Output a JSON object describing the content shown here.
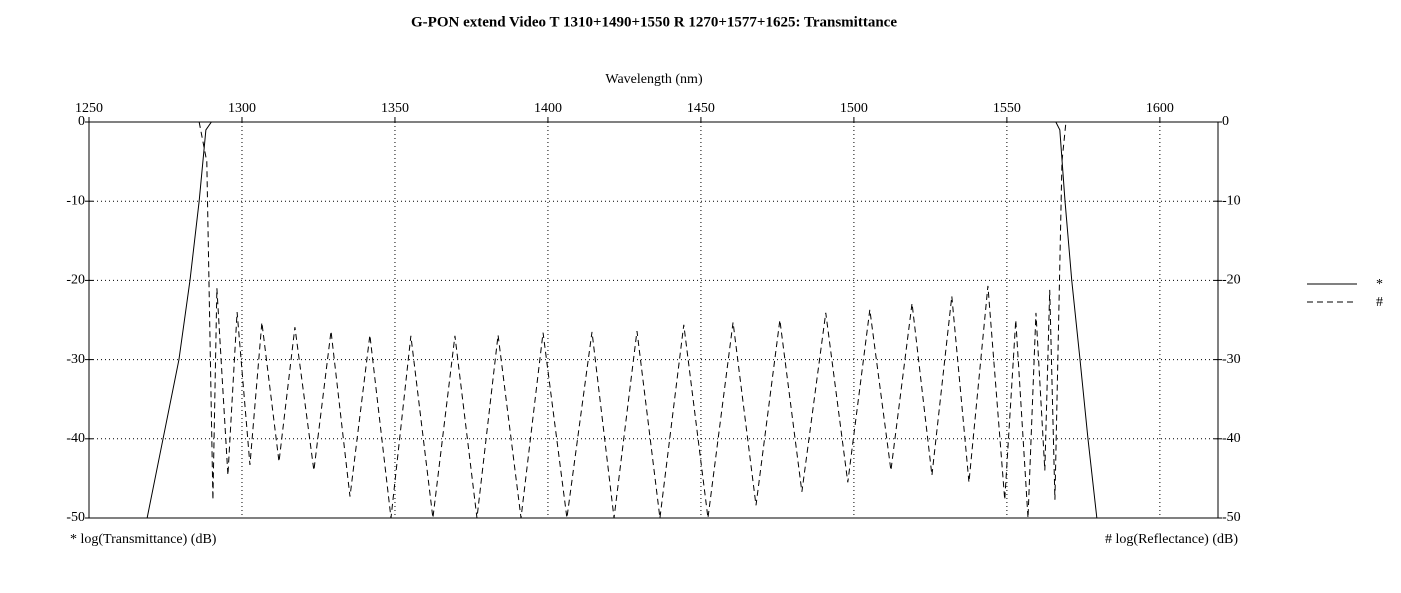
{
  "chart_data": {
    "type": "line",
    "title": "G-PON extend Video T 1310+1490+1550 R 1270+1577+1625: Transmittance",
    "x_label": "Wavelength (nm)",
    "y_label": "* log(Transmittance) (dB)",
    "y2_label": "# log(Reflectance) (dB)",
    "xlim": [
      1250,
      1619
    ],
    "xticks": [
      1250,
      1300,
      1350,
      1400,
      1450,
      1500,
      1550,
      1600
    ],
    "ylim": [
      -50,
      0
    ],
    "yticks": [
      0,
      -10,
      -20,
      -30,
      -40,
      -50
    ],
    "y2lim": [
      -50,
      0
    ],
    "y2ticks": [
      0,
      -10,
      -20,
      -30,
      -40,
      -50
    ],
    "grid": true,
    "legend": "right",
    "series": [
      {
        "name": "*",
        "color": "#000000",
        "dash": false,
        "x": [
          1269,
          1274.2,
          1279.4,
          1283,
          1286,
          1288.2,
          1290,
          1566,
          1567.3,
          1569,
          1571.2,
          1573.9,
          1576.5,
          1579.4
        ],
        "values": [
          -50,
          -40,
          -30,
          -20,
          -10,
          -1,
          0,
          0,
          -1,
          -10,
          -20,
          -30,
          -40,
          -50
        ]
      },
      {
        "name": "#",
        "color": "#000000",
        "dash": true,
        "axis": "y2",
        "x": [
          1286,
          1288.5,
          1290.5,
          1291.8,
          1295.4,
          1298.4,
          1302.6,
          1306.5,
          1312.1,
          1317.3,
          1323.5,
          1329.1,
          1335.3,
          1341.8,
          1348.7,
          1355.2,
          1362.4,
          1369.6,
          1376.8,
          1383.7,
          1391.2,
          1398.4,
          1406.2,
          1414.4,
          1421.6,
          1429.1,
          1436.6,
          1444.4,
          1452.3,
          1460.5,
          1468,
          1475.8,
          1483,
          1490.8,
          1498,
          1505.2,
          1512.1,
          1519,
          1525.5,
          1532,
          1537.6,
          1543.8,
          1549.3,
          1552.9,
          1556.9,
          1559.5,
          1562.4,
          1564,
          1565.7,
          1568,
          1569.3
        ],
        "values": [
          0,
          -5,
          -47.7,
          -21,
          -44.6,
          -24,
          -43.3,
          -25.3,
          -42.9,
          -25.9,
          -44,
          -26.4,
          -47.3,
          -26.9,
          -50,
          -27,
          -50,
          -27,
          -50,
          -26.9,
          -50,
          -26.6,
          -50,
          -26.5,
          -50,
          -26.4,
          -50,
          -25.6,
          -50,
          -25.3,
          -48.4,
          -25,
          -46.7,
          -24.1,
          -45.5,
          -23.7,
          -44,
          -22.9,
          -44.6,
          -22,
          -45.5,
          -20.7,
          -47.7,
          -25,
          -50,
          -24.1,
          -44,
          -21.2,
          -47.7,
          -5,
          0
        ]
      }
    ]
  }
}
